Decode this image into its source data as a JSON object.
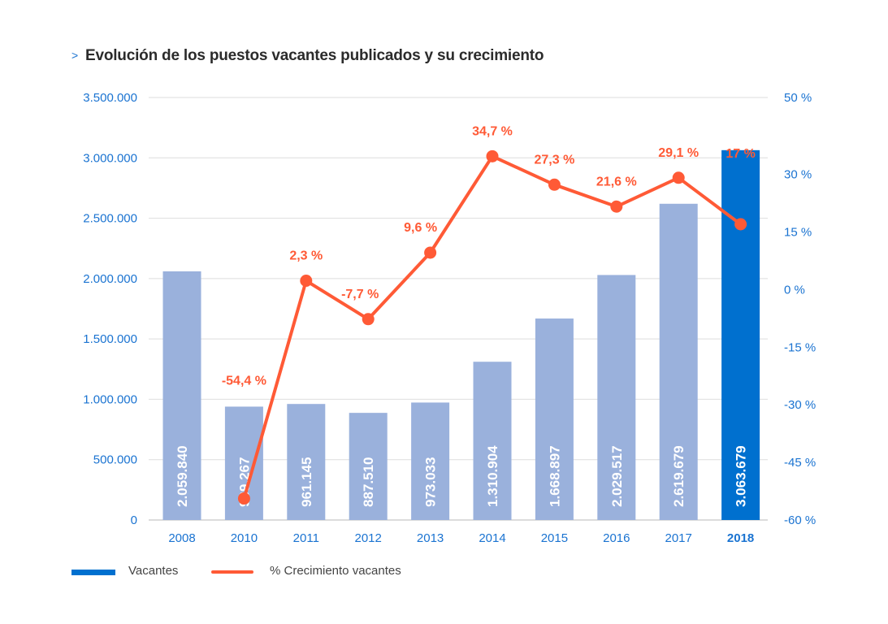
{
  "title": {
    "prefix_icon": "chevron-right-icon",
    "prefix_glyph": ">",
    "text": "Evolución de los puestos vacantes publicados y su crecimiento"
  },
  "colors": {
    "bar": "#9ab1dc",
    "bar_highlight": "#0070cf",
    "line": "#ff5a36",
    "axis_text": "#1a73d1",
    "grid": "#dedede",
    "bar_label": "#ffffff"
  },
  "chart_data": {
    "type": "bar",
    "title": "Evolución de los puestos vacantes publicados y su crecimiento",
    "categories": [
      "2008",
      "2010",
      "2011",
      "2012",
      "2013",
      "2014",
      "2015",
      "2016",
      "2017",
      "2018"
    ],
    "highlight_category": "2018",
    "series": [
      {
        "name": "Vacantes",
        "type": "bar",
        "axis": "left",
        "values": [
          2059840,
          939267,
          961145,
          887510,
          973033,
          1310904,
          1668897,
          2029517,
          2619679,
          3063679
        ],
        "labels": [
          "2.059.840",
          "939.267",
          "961.145",
          "887.510",
          "973.033",
          "1.310.904",
          "1.668.897",
          "2.029.517",
          "2.619.679",
          "3.063.679"
        ]
      },
      {
        "name": "% Crecimiento vacantes",
        "type": "line",
        "axis": "right",
        "values": [
          null,
          -54.4,
          2.3,
          -7.7,
          9.6,
          34.7,
          27.3,
          21.6,
          29.1,
          17
        ],
        "labels": [
          "",
          "-54,4 %",
          "2,3 %",
          "-7,7 %",
          "9,6 %",
          "34,7 %",
          "27,3 %",
          "21,6 %",
          "29,1 %",
          "17 %"
        ]
      }
    ],
    "y_left": {
      "range": [
        0,
        3500000
      ],
      "ticks": [
        0,
        500000,
        1000000,
        1500000,
        2000000,
        2500000,
        3000000,
        3500000
      ],
      "tick_labels": [
        "0",
        "500.000",
        "1.000.000",
        "1.500.000",
        "2.000.000",
        "2.500.000",
        "3.000.000",
        "3.500.000"
      ]
    },
    "y_right": {
      "range": [
        -60,
        50
      ],
      "ticks": [
        -60,
        -45,
        -30,
        -15,
        0,
        15,
        30,
        50
      ],
      "tick_labels": [
        "-60 %",
        "-45 %",
        "-30 %",
        "-15 %",
        "0 %",
        "15 %",
        "30 %",
        "50 %"
      ]
    },
    "xlabel": "",
    "ylabel": "",
    "grid": true,
    "legend_position": "bottom-left"
  },
  "legend": [
    {
      "label": "Vacantes",
      "kind": "bar"
    },
    {
      "label": "% Crecimiento vacantes",
      "kind": "line"
    }
  ]
}
